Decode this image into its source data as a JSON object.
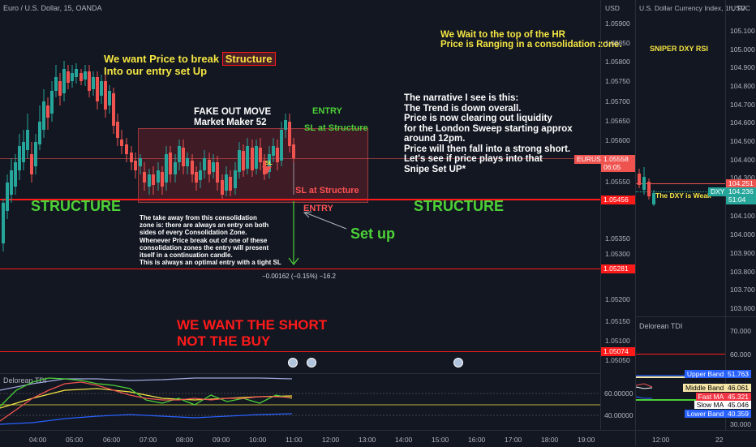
{
  "eurusd": {
    "title": "Euro / U.S. Dollar, 15, OANDA",
    "currency": "USD",
    "price_ticks": [
      "1.05900",
      "1.05850",
      "1.05800",
      "1.05750",
      "1.05700",
      "1.05650",
      "1.05600",
      "1.05550",
      "1.05500",
      "1.05350",
      "1.05300",
      "1.05250",
      "1.05200",
      "1.05150",
      "1.05100",
      "1.05050"
    ],
    "time_ticks": [
      "04:00",
      "05:00",
      "06:00",
      "07:00",
      "08:00",
      "09:00",
      "10:00",
      "11:00",
      "12:00",
      "13:00",
      "14:00",
      "15:00",
      "16:00",
      "17:00",
      "18:00",
      "19:00"
    ],
    "symbol_tag": "EURUSD",
    "price_tag": "1.05558",
    "countdown_tag": "06:05",
    "level_tag_1": "1.05456",
    "level_tag_2": "1.05281",
    "level_tag_3": "1.05074",
    "measure_text": "−0.00162 (−0.15%) −16.2"
  },
  "annotations": {
    "break_line1_prefix": "We want Price to break ",
    "break_line1_highlight": "Structure",
    "break_line2": "Into our entry set Up",
    "fake_out_1": "FAKE OUT MOVE",
    "fake_out_2": "Market Maker 52",
    "entry_top": "ENTRY",
    "sl_structure_top": "SL at Structure",
    "sl_structure_bottom": "SL at Structure",
    "entry_bottom": "ENTRY",
    "sl_marker": "SL",
    "structure_left": "STRUCTURE",
    "structure_right": "STRUCTURE",
    "setup": "Set up",
    "wait_1": "We Wait to the top of the HR",
    "wait_2": "Price is Ranging in a consolidation zone.",
    "narrative": [
      "The narrative I see is this:",
      "The Trend is down overall.",
      "Price is now clearing out liquidity",
      "for the London Sweep  starting approx",
      "around 12pm.",
      "Price will then fall into a strong short.",
      "Let's see if price plays into that",
      "Snipe Set UP*"
    ],
    "takeaway": [
      "The take away from this consolidation",
      "zone is: there are always an entry on both",
      "sides of every Consolidation Zone.",
      "Whenever Price break out of one of these",
      "consolidation zones the entry will present",
      "itself in a continuation candle.",
      "This is always an optimal entry with a tight SL"
    ],
    "short_1": "WE WANT THE SHORT",
    "short_2": "NOT THE BUY"
  },
  "lower_indicator": {
    "title": "Delorean TDI",
    "ticks": [
      "60.00000",
      "40.00000"
    ]
  },
  "dxy": {
    "title": "U.S. Dollar Currency Index, 1h, TVC",
    "currency": "USD",
    "ticks": [
      "105.100",
      "105.000",
      "104.900",
      "104.800",
      "104.700",
      "104.600",
      "104.500",
      "104.400",
      "104.300",
      "104.100",
      "104.000",
      "103.900",
      "103.800",
      "103.700",
      "103.600"
    ],
    "time_ticks": [
      "12:00",
      "22"
    ],
    "rsi_label": "SNIPER DXY RSI",
    "weak_label": "The DXY is Weak",
    "symbol_tag": "DXY",
    "price_tag": "104.236",
    "countdown_tag": "51:04",
    "level_tag": "104.251"
  },
  "dxy_tdi": {
    "title": "Delorean TDI",
    "ticks": [
      "70.000",
      "60.000",
      "50.000",
      "40.000",
      "30.000"
    ],
    "bands": [
      {
        "name": "Upper Band",
        "value": "51.763",
        "bg": "#2962ff",
        "fg": "#ffffff"
      },
      {
        "name": "Middle Band",
        "value": "46.061",
        "bg": "#f5e6a8",
        "fg": "#000000"
      },
      {
        "name": "Fast MA",
        "value": "45.321",
        "bg": "#f23645",
        "fg": "#ffffff"
      },
      {
        "name": "Slow MA",
        "value": "45.046",
        "bg": "#ffffff",
        "fg": "#000000"
      },
      {
        "name": "Lower Band",
        "value": "40.359",
        "bg": "#2962ff",
        "fg": "#ffffff"
      }
    ]
  },
  "colors": {
    "background": "#131722",
    "bull": "#26a69a",
    "bear": "#ef5350",
    "level_red": "#ff1a1a",
    "annotation_yellow": "#f5e642",
    "annotation_green": "#4cd137"
  }
}
